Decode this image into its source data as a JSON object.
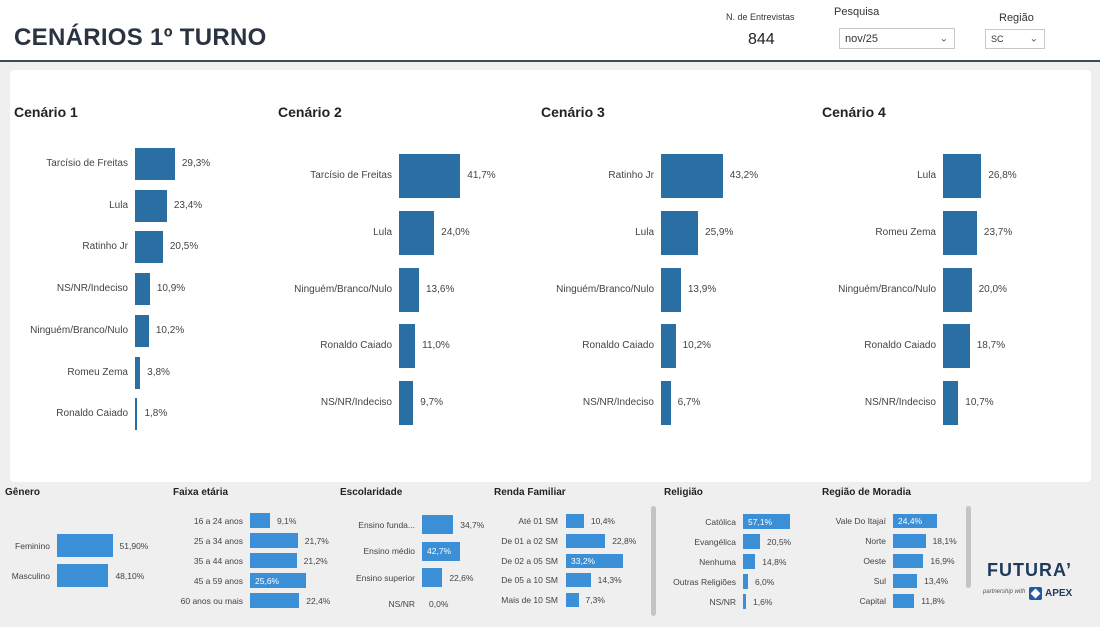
{
  "header": {
    "title": "CENÁRIOS 1º TURNO",
    "sample_label": "N. de Entrevistas",
    "sample_value": "844",
    "pesquisa_label": "Pesquisa",
    "pesquisa_value": "nov/25",
    "regiao_label": "Região",
    "regiao_value": "SC"
  },
  "brand": {
    "name": "FUTURA’",
    "partner_text": "partnership with",
    "partner_name": "APEX"
  },
  "colors": {
    "main_bar": "#2a6fa4",
    "small_bar": "#3a8fd6",
    "header_rule": "#3b4a5c"
  },
  "chart_data": [
    {
      "type": "bar",
      "orientation": "horizontal",
      "title": "Cenário 1",
      "categories": [
        "Tarcísio de Freitas",
        "Lula",
        "Ratinho Jr",
        "NS/NR/Indeciso",
        "Ninguém/Branco/Nulo",
        "Romeu Zema",
        "Ronaldo Caiado"
      ],
      "values": [
        29.3,
        23.4,
        20.5,
        10.9,
        10.2,
        3.8,
        1.8
      ],
      "labels": [
        "29,3%",
        "23,4%",
        "20,5%",
        "10,9%",
        "10,2%",
        "3,8%",
        "1,8%"
      ]
    },
    {
      "type": "bar",
      "orientation": "horizontal",
      "title": "Cenário 2",
      "categories": [
        "Tarcísio de Freitas",
        "Lula",
        "Ninguém/Branco/Nulo",
        "Ronaldo Caiado",
        "NS/NR/Indeciso"
      ],
      "values": [
        41.7,
        24.0,
        13.6,
        11.0,
        9.7
      ],
      "labels": [
        "41,7%",
        "24,0%",
        "13,6%",
        "11,0%",
        "9,7%"
      ]
    },
    {
      "type": "bar",
      "orientation": "horizontal",
      "title": "Cenário 3",
      "categories": [
        "Ratinho Jr",
        "Lula",
        "Ninguém/Branco/Nulo",
        "Ronaldo Caiado",
        "NS/NR/Indeciso"
      ],
      "values": [
        43.2,
        25.9,
        13.9,
        10.2,
        6.7
      ],
      "labels": [
        "43,2%",
        "25,9%",
        "13,9%",
        "10,2%",
        "6,7%"
      ]
    },
    {
      "type": "bar",
      "orientation": "horizontal",
      "title": "Cenário 4",
      "categories": [
        "Lula",
        "Romeu Zema",
        "Ninguém/Branco/Nulo",
        "Ronaldo Caiado",
        "NS/NR/Indeciso"
      ],
      "values": [
        26.8,
        23.7,
        20.0,
        18.7,
        10.7
      ],
      "labels": [
        "26,8%",
        "23,7%",
        "20,0%",
        "18,7%",
        "10,7%"
      ]
    },
    {
      "type": "bar",
      "orientation": "horizontal",
      "title": "Gênero",
      "categories": [
        "Feminino",
        "Masculino"
      ],
      "values": [
        51.9,
        48.1
      ],
      "labels": [
        "51,90%",
        "48,10%"
      ]
    },
    {
      "type": "bar",
      "orientation": "horizontal",
      "title": "Faixa etária",
      "categories": [
        "16 a 24 anos",
        "25 a 34 anos",
        "35 a 44 anos",
        "45 a 59 anos",
        "60 anos ou mais"
      ],
      "values": [
        9.1,
        21.7,
        21.2,
        25.6,
        22.4
      ],
      "labels": [
        "9,1%",
        "21,7%",
        "21,2%",
        "25,6%",
        "22,4%"
      ]
    },
    {
      "type": "bar",
      "orientation": "horizontal",
      "title": "Escolaridade",
      "categories": [
        "Ensino funda...",
        "Ensino médio",
        "Ensino superior",
        "NS/NR"
      ],
      "values": [
        34.7,
        42.7,
        22.6,
        0.0
      ],
      "labels": [
        "34,7%",
        "42,7%",
        "22,6%",
        "0,0%"
      ]
    },
    {
      "type": "bar",
      "orientation": "horizontal",
      "title": "Renda Familiar",
      "categories": [
        "Até 01 SM",
        "De 01 a 02 SM",
        "De 02 a 05 SM",
        "De 05 a 10 SM",
        "Mais de 10 SM"
      ],
      "values": [
        10.4,
        22.8,
        33.2,
        14.3,
        7.3
      ],
      "labels": [
        "10,4%",
        "22,8%",
        "33,2%",
        "14,3%",
        "7,3%"
      ]
    },
    {
      "type": "bar",
      "orientation": "horizontal",
      "title": "Religião",
      "categories": [
        "Católica",
        "Evangélica",
        "Nenhuma",
        "Outras Religiões",
        "NS/NR"
      ],
      "values": [
        57.1,
        20.5,
        14.8,
        6.0,
        1.6
      ],
      "labels": [
        "57,1%",
        "20,5%",
        "14,8%",
        "6,0%",
        "1,6%"
      ]
    },
    {
      "type": "bar",
      "orientation": "horizontal",
      "title": "Região de Moradia",
      "categories": [
        "Vale Do Itajaí",
        "Norte",
        "Oeste",
        "Sul",
        "Capital"
      ],
      "values": [
        24.4,
        18.1,
        16.9,
        13.4,
        11.8
      ],
      "labels": [
        "24,4%",
        "18,1%",
        "16,9%",
        "13,4%",
        "11,8%"
      ]
    }
  ]
}
